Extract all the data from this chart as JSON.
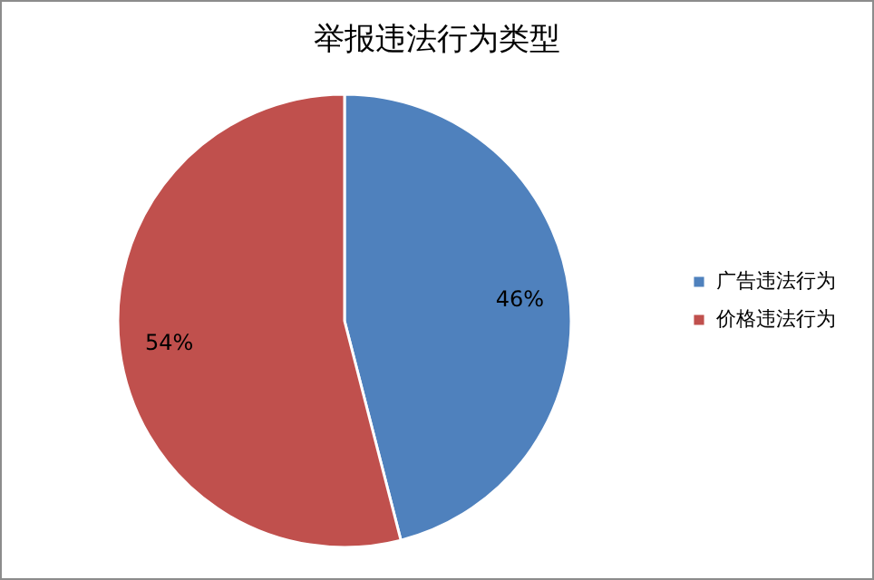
{
  "chart_data": {
    "type": "pie",
    "title": "举报违法行为类型",
    "categories": [
      "广告违法行为",
      "价格违法行为"
    ],
    "values": [
      46,
      54
    ],
    "value_labels": [
      "46%",
      "54%"
    ],
    "colors": [
      "#4f81bd",
      "#c0504d"
    ],
    "legend": "right"
  }
}
